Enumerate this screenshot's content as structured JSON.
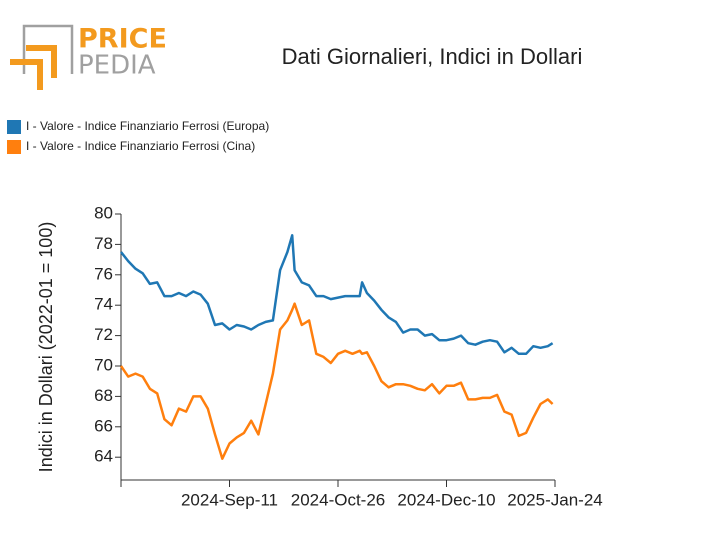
{
  "logo": {
    "top": "PRICE",
    "bottom": "PEDIA"
  },
  "chart_data": {
    "type": "line",
    "title": "Dati Giornalieri, Indici in Dollari",
    "ylabel": "Indici in Dollari (2022-01 = 100)",
    "x": [
      "2024-07-28",
      "2024-07-31",
      "2024-08-03",
      "2024-08-06",
      "2024-08-09",
      "2024-08-12",
      "2024-08-15",
      "2024-08-18",
      "2024-08-21",
      "2024-08-24",
      "2024-08-27",
      "2024-08-30",
      "2024-09-02",
      "2024-09-05",
      "2024-09-08",
      "2024-09-11",
      "2024-09-14",
      "2024-09-17",
      "2024-09-20",
      "2024-09-23",
      "2024-09-26",
      "2024-09-29",
      "2024-10-02",
      "2024-10-05",
      "2024-10-07",
      "2024-10-08",
      "2024-10-11",
      "2024-10-14",
      "2024-10-17",
      "2024-10-20",
      "2024-10-23",
      "2024-10-26",
      "2024-10-29",
      "2024-11-01",
      "2024-11-04",
      "2024-11-05",
      "2024-11-07",
      "2024-11-10",
      "2024-11-13",
      "2024-11-16",
      "2024-11-19",
      "2024-11-22",
      "2024-11-25",
      "2024-11-28",
      "2024-12-01",
      "2024-12-04",
      "2024-12-07",
      "2024-12-10",
      "2024-12-13",
      "2024-12-16",
      "2024-12-19",
      "2024-12-22",
      "2024-12-25",
      "2024-12-28",
      "2024-12-31",
      "2025-01-03",
      "2025-01-06",
      "2025-01-09",
      "2025-01-12",
      "2025-01-15",
      "2025-01-18",
      "2025-01-21",
      "2025-01-23"
    ],
    "series": [
      {
        "name": "I - Valore - Indice Finanziario Ferrosi (Europa)",
        "color": "#1f77b4",
        "values": [
          77.5,
          76.9,
          76.4,
          76.1,
          75.4,
          75.5,
          74.6,
          74.6,
          74.8,
          74.6,
          74.9,
          74.7,
          74.1,
          72.7,
          72.8,
          72.4,
          72.7,
          72.6,
          72.4,
          72.7,
          72.9,
          73.0,
          76.3,
          77.5,
          78.6,
          76.3,
          75.5,
          75.3,
          74.6,
          74.6,
          74.4,
          74.5,
          74.6,
          74.6,
          74.6,
          75.5,
          74.8,
          74.3,
          73.7,
          73.2,
          72.9,
          72.2,
          72.4,
          72.4,
          72.0,
          72.1,
          71.7,
          71.7,
          71.8,
          72.0,
          71.5,
          71.4,
          71.6,
          71.7,
          71.6,
          70.9,
          71.2,
          70.8,
          70.8,
          71.3,
          71.2,
          71.3,
          71.5
        ]
      },
      {
        "name": "I - Valore - Indice Finanziario Ferrosi (Cina)",
        "color": "#ff7f0e",
        "values": [
          70.0,
          69.3,
          69.5,
          69.3,
          68.5,
          68.2,
          66.5,
          66.1,
          67.2,
          67.0,
          68.0,
          68.0,
          67.2,
          65.5,
          63.9,
          64.9,
          65.3,
          65.6,
          66.4,
          65.5,
          67.5,
          69.5,
          72.4,
          73.0,
          73.7,
          74.1,
          72.7,
          73.0,
          70.8,
          70.6,
          70.2,
          70.8,
          71.0,
          70.8,
          71.0,
          70.8,
          70.9,
          70.0,
          69.0,
          68.6,
          68.8,
          68.8,
          68.7,
          68.5,
          68.4,
          68.8,
          68.2,
          68.7,
          68.7,
          68.9,
          67.8,
          67.8,
          67.9,
          67.9,
          68.1,
          67.0,
          66.8,
          65.4,
          65.6,
          66.6,
          67.5,
          67.8,
          67.5
        ]
      }
    ],
    "xlim": [
      "2024-07-28",
      "2025-01-24"
    ],
    "xticks": [
      {
        "value": "2024-09-11",
        "label": "2024-Sep-11"
      },
      {
        "value": "2024-10-26",
        "label": "2024-Oct-26"
      },
      {
        "value": "2024-12-10",
        "label": "2024-Dec-10"
      },
      {
        "value": "2025-01-24",
        "label": "2025-Jan-24"
      }
    ],
    "ylim": [
      62.5,
      80
    ],
    "yticks": [
      64,
      66,
      68,
      70,
      72,
      74,
      76,
      78,
      80
    ],
    "grid": false,
    "legend": "top-left"
  }
}
